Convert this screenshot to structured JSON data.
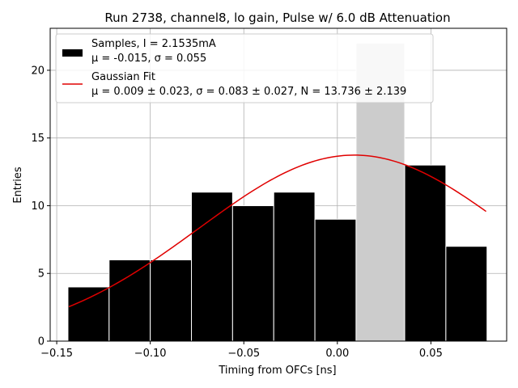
{
  "chart_data": {
    "type": "bar",
    "title": "Run 2738, channel8, lo gain, Pulse w/ 6.0 dB Attenuation",
    "xlabel": "Timing from OFCs [ns]",
    "ylabel": "Entries",
    "xlim": [
      -0.1535,
      0.0905
    ],
    "ylim": [
      0,
      23.1
    ],
    "grid": true,
    "x_ticks": [
      -0.15,
      -0.1,
      -0.05,
      0.0,
      0.05
    ],
    "x_tick_labels": [
      "−0.15",
      "−0.10",
      "−0.05",
      "0.00",
      "0.05"
    ],
    "y_ticks": [
      0,
      5,
      10,
      15,
      20
    ],
    "y_tick_labels": [
      "0",
      "5",
      "10",
      "15",
      "20"
    ],
    "bins": [
      {
        "left": -0.144,
        "right": -0.122,
        "count": 4
      },
      {
        "left": -0.122,
        "right": -0.1,
        "count": 6
      },
      {
        "left": -0.1,
        "right": -0.078,
        "count": 6
      },
      {
        "left": -0.078,
        "right": -0.056,
        "count": 11
      },
      {
        "left": -0.056,
        "right": -0.034,
        "count": 10
      },
      {
        "left": -0.034,
        "right": -0.012,
        "count": 11
      },
      {
        "left": -0.012,
        "right": 0.01,
        "count": 9
      },
      {
        "left": 0.01,
        "right": 0.036,
        "count": 22,
        "color": "#cccccc"
      },
      {
        "left": 0.036,
        "right": 0.058,
        "count": 13
      },
      {
        "left": 0.058,
        "right": 0.08,
        "count": 7
      }
    ],
    "bar_color": "#000000",
    "fit": {
      "mu": 0.009,
      "sigma": 0.083,
      "N": 13.736,
      "x_range": [
        -0.1435,
        0.0795
      ],
      "color": "#e00000"
    },
    "legend": {
      "placement": "top-left",
      "entries": [
        {
          "name": "samples",
          "line1": "Samples, I = 2.1535mA",
          "line2": "μ = -0.015, σ = 0.055"
        },
        {
          "name": "fit",
          "line1": "Gaussian Fit",
          "line2": "μ = 0.009 ± 0.023, σ = 0.083 ± 0.027, N = 13.736 ± 2.139"
        }
      ]
    }
  }
}
